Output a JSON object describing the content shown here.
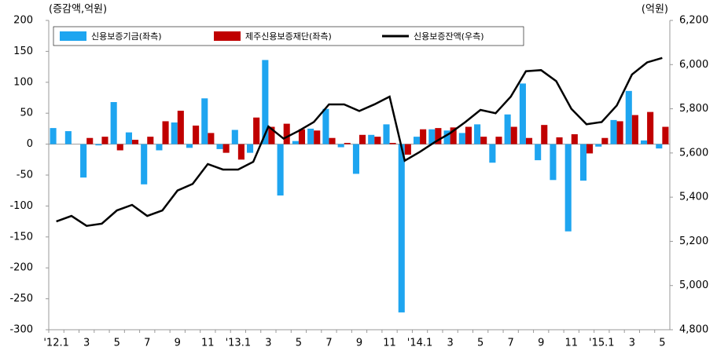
{
  "chart_data": {
    "type": "bar",
    "y_label": "(증감액,억원)",
    "y2_label": "(억원)",
    "categories": [
      "'12.1",
      null,
      "3",
      null,
      "5",
      null,
      "7",
      null,
      "9",
      null,
      "11",
      null,
      "'13.1",
      null,
      "3",
      null,
      "5",
      null,
      "7",
      null,
      "9",
      null,
      "11",
      null,
      "'14.1",
      null,
      "3",
      null,
      "5",
      null,
      "7",
      null,
      "9",
      null,
      "11",
      null,
      "'15.1",
      null,
      "3",
      null,
      "5"
    ],
    "series": [
      {
        "name": "신용보증기금(좌측)",
        "color": "#1ea5f0",
        "type": "bar",
        "values": [
          26,
          21,
          -54,
          -2,
          68,
          19,
          -65,
          -10,
          35,
          -6,
          74,
          -8,
          23,
          -14,
          136,
          -83,
          5,
          25,
          57,
          -5,
          -48,
          15,
          32,
          -272,
          12,
          24,
          22,
          18,
          32,
          -30,
          48,
          98,
          -26,
          -58,
          -141,
          -59,
          -4,
          39,
          86,
          6,
          -7
        ]
      },
      {
        "name": "제주신용보증재단(좌측)",
        "color": "#c00000",
        "type": "bar",
        "values": [
          0,
          0,
          10,
          12,
          -10,
          7,
          12,
          37,
          54,
          30,
          18,
          -14,
          -25,
          43,
          28,
          33,
          24,
          22,
          10,
          2,
          15,
          12,
          2,
          -17,
          24,
          26,
          27,
          28,
          12,
          12,
          28,
          10,
          31,
          11,
          16,
          -15,
          10,
          37,
          47,
          52,
          28
        ]
      },
      {
        "name": "신용보증잔액(우측)",
        "color": "#000000",
        "type": "line",
        "axis": "y2",
        "values": [
          5290,
          5315,
          5270,
          5280,
          5340,
          5365,
          5315,
          5340,
          5430,
          5460,
          5550,
          5525,
          5525,
          5560,
          5720,
          5665,
          5700,
          5740,
          5820,
          5820,
          5790,
          5820,
          5855,
          5565,
          5605,
          5650,
          5690,
          5740,
          5795,
          5780,
          5855,
          5970,
          5975,
          5925,
          5800,
          5730,
          5740,
          5815,
          5955,
          6010,
          6030
        ]
      }
    ],
    "ylim": [
      -300,
      200
    ],
    "yticks": [
      -300,
      -250,
      -200,
      -150,
      -100,
      -50,
      0,
      50,
      100,
      150,
      200
    ],
    "y2lim": [
      4800,
      6200
    ],
    "y2ticks": [
      {
        "value": 4800,
        "label": "4,800"
      },
      {
        "value": 5000,
        "label": "5,000"
      },
      {
        "value": 5200,
        "label": "5,200"
      },
      {
        "value": 5400,
        "label": "5,400"
      },
      {
        "value": 5600,
        "label": "5,600"
      },
      {
        "value": 5800,
        "label": "5,800"
      },
      {
        "value": 6000,
        "label": "6,000"
      },
      {
        "value": 6200,
        "label": "6,200"
      }
    ]
  }
}
